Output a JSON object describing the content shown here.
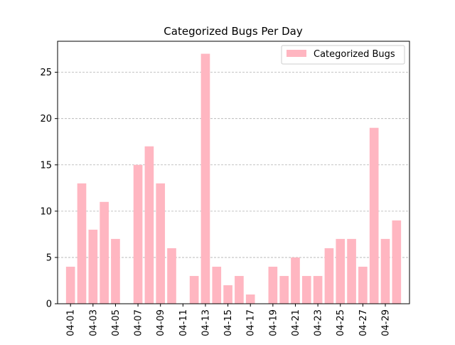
{
  "chart_data": {
    "type": "bar",
    "title": "Categorized Bugs Per Day",
    "xlabel": "",
    "ylabel": "",
    "categories": [
      "04-01",
      "04-02",
      "04-03",
      "04-04",
      "04-05",
      "04-06",
      "04-07",
      "04-08",
      "04-09",
      "04-10",
      "04-11",
      "04-12",
      "04-13",
      "04-14",
      "04-15",
      "04-16",
      "04-17",
      "04-18",
      "04-19",
      "04-20",
      "04-21",
      "04-22",
      "04-23",
      "04-24",
      "04-25",
      "04-26",
      "04-27",
      "04-28",
      "04-29",
      "04-30"
    ],
    "series": [
      {
        "name": "Categorized Bugs",
        "color": "#ffb6c1",
        "values": [
          4,
          13,
          8,
          11,
          7,
          0,
          15,
          17,
          13,
          6,
          0,
          3,
          27,
          4,
          2,
          3,
          1,
          0,
          4,
          3,
          5,
          3,
          3,
          6,
          7,
          7,
          4,
          19,
          7,
          9
        ]
      }
    ],
    "x_tick_labels": [
      "04-01",
      "04-03",
      "04-05",
      "04-07",
      "04-09",
      "04-11",
      "04-13",
      "04-15",
      "04-17",
      "04-19",
      "04-21",
      "04-23",
      "04-25",
      "04-27",
      "04-29"
    ],
    "y_ticks": [
      0,
      5,
      10,
      15,
      20,
      25
    ],
    "ylim": [
      0,
      28.35
    ],
    "grid": "y-dashed",
    "legend": "top-right"
  }
}
